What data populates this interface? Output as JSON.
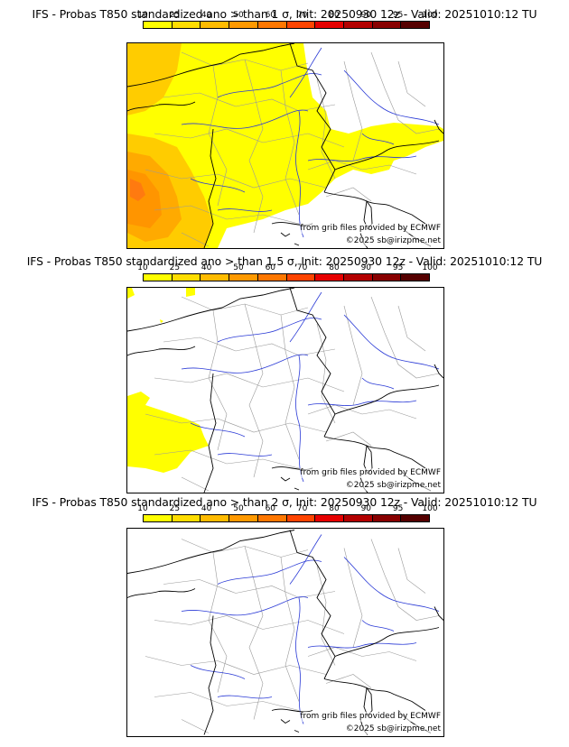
{
  "colorbar": {
    "ticks": [
      "10",
      "25",
      "40",
      "50",
      "60",
      "70",
      "80",
      "90",
      "95",
      "100"
    ],
    "colors": [
      "#ffff00",
      "#ffdd00",
      "#ffbb00",
      "#ff9900",
      "#ff7700",
      "#ff4400",
      "#e60000",
      "#b30000",
      "#880000",
      "#550000"
    ]
  },
  "panels": [
    {
      "title": "IFS - Probas T850  standardized ano > than 1 σ, Init: 20250930 12z - Valid: 20251010:12 TU",
      "threshold": "1",
      "coverage": "high"
    },
    {
      "title": "IFS - Probas T850  standardized ano > than 1.5 σ, Init: 20250930 12z - Valid: 20251010:12 TU",
      "threshold": "1.5",
      "coverage": "low"
    },
    {
      "title": "IFS - Probas T850  standardized ano > than 2 σ, Init: 20250930 12z - Valid: 20251010:12 TU",
      "threshold": "2",
      "coverage": "none"
    }
  ],
  "credits": {
    "source": "from grib files provided by ECMWF",
    "copyright": "©2025 sb@irizpme.net"
  }
}
